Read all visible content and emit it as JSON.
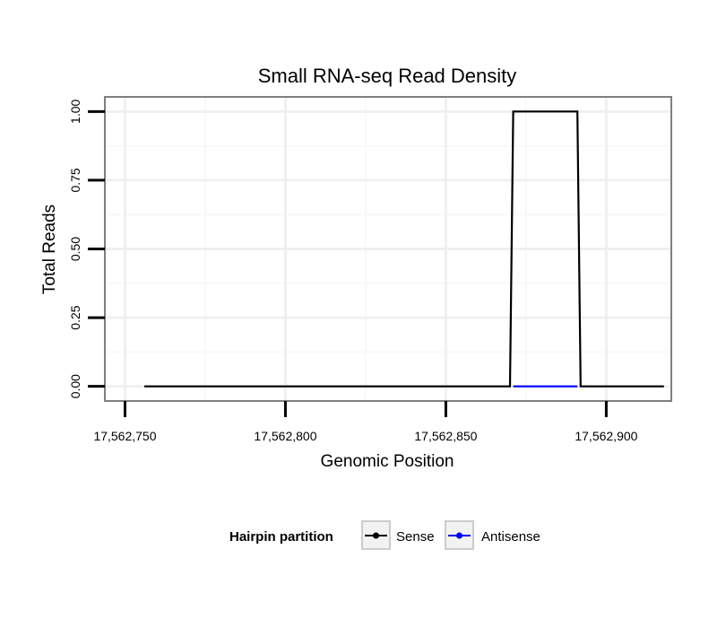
{
  "chart_data": {
    "type": "line",
    "title": "Small RNA-seq Read Density",
    "xlabel": "Genomic Position",
    "ylabel": "Total Reads",
    "xlim": [
      17562744,
      17562920
    ],
    "ylim": [
      -0.05,
      1.05
    ],
    "x_ticks": [
      17562750,
      17562800,
      17562850,
      17562900
    ],
    "x_tick_labels": [
      "17,562,750",
      "17,562,800",
      "17,562,850",
      "17,562,900"
    ],
    "y_ticks": [
      0,
      0.25,
      0.5,
      0.75,
      1.0
    ],
    "y_tick_labels": [
      "0.00",
      "0.25",
      "0.50",
      "0.75",
      "1.00"
    ],
    "grid": true,
    "legend": {
      "title": "Hairpin partition",
      "position": "bottom",
      "entries": [
        "Sense",
        "Antisense"
      ]
    },
    "series": [
      {
        "name": "Sense",
        "color": "#000000",
        "x": [
          17562756,
          17562870,
          17562871,
          17562891,
          17562892,
          17562918
        ],
        "y": [
          0,
          0,
          1,
          1,
          0,
          0
        ]
      },
      {
        "name": "Antisense",
        "color": "#0000ff",
        "x": [
          17562871,
          17562891
        ],
        "y": [
          0,
          0
        ]
      }
    ]
  }
}
